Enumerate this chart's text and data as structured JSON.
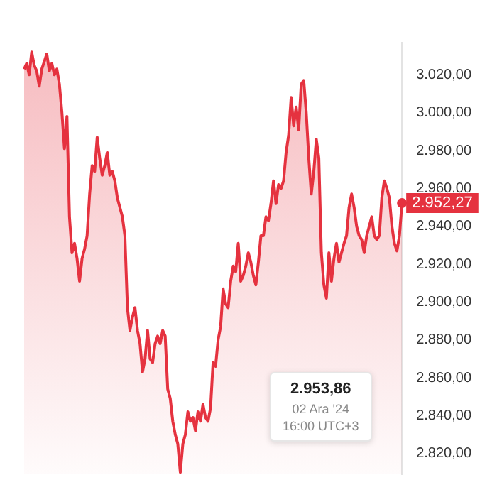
{
  "chart_data": {
    "type": "area",
    "color": "#e5323f",
    "categories": [
      null,
      null,
      null,
      null,
      null,
      null,
      null,
      null,
      null,
      null,
      null,
      null,
      null,
      null,
      null,
      null,
      null,
      null,
      null,
      null,
      null,
      null,
      null,
      null,
      null,
      null,
      null,
      null,
      null,
      null,
      null,
      null,
      null,
      null,
      null,
      null,
      null,
      null,
      null,
      null,
      null,
      null,
      null,
      null,
      null,
      null,
      null,
      null,
      null,
      null,
      null,
      null,
      null,
      null,
      null,
      null,
      null,
      null,
      null,
      null,
      null,
      null,
      null,
      null,
      null,
      null,
      null,
      null,
      null,
      null,
      null,
      null,
      null,
      null,
      null,
      null,
      null,
      null,
      null,
      null,
      null,
      null,
      null,
      null,
      null,
      null,
      null,
      null,
      null,
      null,
      null,
      null,
      null,
      null,
      null,
      null,
      null,
      null,
      null,
      null,
      null,
      null,
      null,
      null,
      null,
      null,
      null,
      null,
      null,
      null,
      null,
      null,
      null,
      null,
      null,
      null,
      null,
      null,
      null,
      null,
      null,
      null,
      null,
      null,
      null,
      null,
      null,
      null,
      null,
      null,
      null,
      null,
      null,
      null,
      null,
      null,
      null,
      null,
      null,
      null,
      null,
      null,
      null,
      null,
      null,
      null,
      null,
      null,
      null,
      null,
      null
    ],
    "values": [
      3023,
      3026,
      3020,
      3032,
      3025,
      3022,
      3014,
      3023,
      3027,
      3031,
      3022,
      3026,
      3020,
      3023,
      3015,
      3000,
      2981,
      2998,
      2945,
      2926,
      2931,
      2923,
      2911,
      2923,
      2928,
      2935,
      2957,
      2972,
      2969,
      2987,
      2976,
      2967,
      2972,
      2979,
      2967,
      2969,
      2964,
      2955,
      2950,
      2945,
      2935,
      2897,
      2885,
      2892,
      2897,
      2885,
      2878,
      2863,
      2870,
      2885,
      2870,
      2868,
      2878,
      2882,
      2878,
      2885,
      2882,
      2854,
      2849,
      2837,
      2830,
      2825,
      2810,
      2825,
      2830,
      2842,
      2837,
      2839,
      2832,
      2842,
      2837,
      2846,
      2839,
      2837,
      2844,
      2868,
      2866,
      2880,
      2887,
      2907,
      2899,
      2897,
      2911,
      2919,
      2916,
      2931,
      2911,
      2914,
      2919,
      2926,
      2921,
      2914,
      2909,
      2921,
      2935,
      2935,
      2945,
      2943,
      2952,
      2964,
      2952,
      2962,
      2960,
      2964,
      2979,
      2988,
      3008,
      2993,
      3003,
      2991,
      3015,
      3017,
      3000,
      2976,
      2957,
      2969,
      2986,
      2976,
      2926,
      2909,
      2902,
      2926,
      2911,
      2923,
      2931,
      2921,
      2926,
      2931,
      2935,
      2950,
      2957,
      2950,
      2940,
      2935,
      2933,
      2926,
      2935,
      2940,
      2945,
      2935,
      2933,
      2935,
      2955,
      2964,
      2960,
      2955,
      2940,
      2931,
      2927,
      2935,
      2952.27
    ],
    "value_labels": [
      null,
      null,
      null,
      null,
      null,
      null,
      null,
      null,
      null,
      null,
      null,
      null,
      null,
      null,
      null,
      null,
      null,
      null,
      null,
      null,
      null,
      null,
      null,
      null,
      null,
      null,
      null,
      null,
      null,
      null,
      null,
      null,
      null,
      null,
      null,
      null,
      null,
      null,
      null,
      null,
      null,
      null,
      null,
      null,
      null,
      null,
      null,
      null,
      null,
      null,
      null,
      null,
      null,
      null,
      null,
      null,
      null,
      null,
      null,
      null,
      null,
      null,
      null,
      null,
      null,
      null,
      null,
      null,
      null,
      null,
      null,
      null,
      null,
      null,
      null,
      null,
      null,
      null,
      null,
      null,
      null,
      null,
      null,
      null,
      null,
      null,
      null,
      null,
      null,
      null,
      null,
      null,
      null,
      null,
      null,
      null,
      null,
      null,
      null,
      null,
      null,
      null,
      null,
      null,
      null,
      null,
      null,
      null,
      null,
      null,
      null,
      null,
      null,
      null,
      null,
      null,
      null,
      null,
      null,
      null,
      null,
      null,
      null,
      null,
      null,
      null,
      null,
      null,
      null,
      null,
      null,
      null,
      null,
      null,
      null,
      null,
      null,
      null,
      null,
      null,
      null,
      null,
      null,
      null,
      null,
      null,
      null,
      null,
      null,
      null,
      "2.952,27"
    ],
    "ylim": [
      2809,
      3037
    ],
    "yticks": [
      {
        "value": 2820,
        "label": "2.820,00"
      },
      {
        "value": 2840,
        "label": "2.840,00"
      },
      {
        "value": 2860,
        "label": "2.860,00"
      },
      {
        "value": 2880,
        "label": "2.880,00"
      },
      {
        "value": 2900,
        "label": "2.900,00"
      },
      {
        "value": 2920,
        "label": "2.920,00"
      },
      {
        "value": 2940,
        "label": "2.940,00"
      },
      {
        "value": 2960,
        "label": "2.960,00"
      },
      {
        "value": 2980,
        "label": "2.980,00"
      },
      {
        "value": 3000,
        "label": "3.000,00"
      },
      {
        "value": 3020,
        "label": "3.020,00"
      }
    ],
    "annotations": [
      "2.953,86",
      "02 Ara '24",
      "16:00 UTC+3"
    ],
    "grid": false,
    "legend": false,
    "marker": "none",
    "line_style": "solid"
  }
}
